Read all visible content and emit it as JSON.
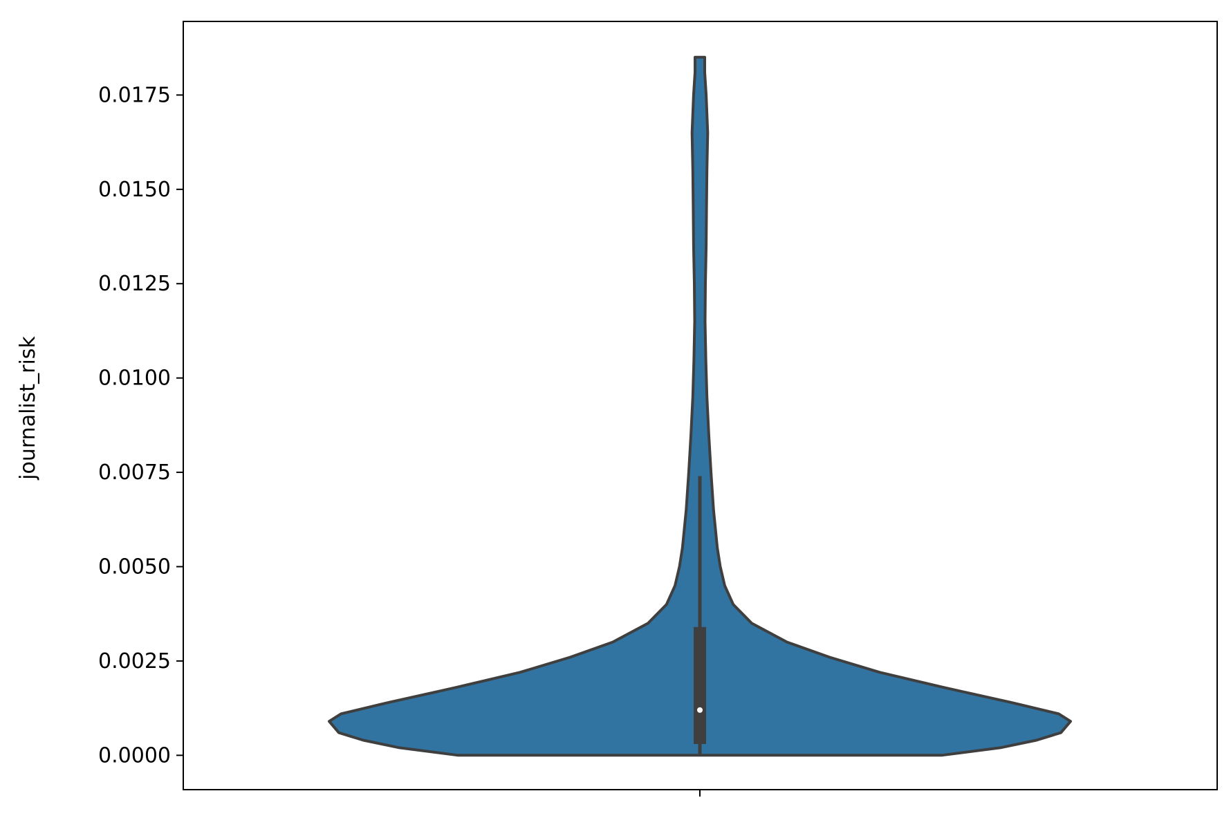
{
  "chart_data": {
    "type": "violin",
    "title": "",
    "xlabel": "",
    "ylabel": "journalist_risk",
    "ylim": [
      -0.00091,
      0.01945
    ],
    "yticks": [
      "0.0000",
      "0.0025",
      "0.0050",
      "0.0075",
      "0.0100",
      "0.0125",
      "0.0150",
      "0.0175"
    ],
    "ytick_values": [
      0,
      0.0025,
      0.005,
      0.0075,
      0.01,
      0.0125,
      0.015,
      0.0175
    ],
    "grid": false,
    "legend": "none",
    "colors": {
      "violin_fill": "#3274a1",
      "violin_edge": "#3f3f3f",
      "box": "#3f3f3f",
      "median": "#ffffff",
      "axis": "#000000"
    },
    "violin": {
      "density_profile": [
        {
          "y": 0.0,
          "w": 0.652
        },
        {
          "y": 0.0002,
          "w": 0.81
        },
        {
          "y": 0.0004,
          "w": 0.908
        },
        {
          "y": 0.0006,
          "w": 0.974
        },
        {
          "y": 0.0009,
          "w": 1.0
        },
        {
          "y": 0.0011,
          "w": 0.968
        },
        {
          "y": 0.0014,
          "w": 0.84
        },
        {
          "y": 0.0018,
          "w": 0.657
        },
        {
          "y": 0.0022,
          "w": 0.485
        },
        {
          "y": 0.0026,
          "w": 0.35
        },
        {
          "y": 0.003,
          "w": 0.235
        },
        {
          "y": 0.0035,
          "w": 0.14
        },
        {
          "y": 0.004,
          "w": 0.09
        },
        {
          "y": 0.0045,
          "w": 0.067
        },
        {
          "y": 0.005,
          "w": 0.055
        },
        {
          "y": 0.0055,
          "w": 0.047
        },
        {
          "y": 0.0065,
          "w": 0.037
        },
        {
          "y": 0.0075,
          "w": 0.03
        },
        {
          "y": 0.0085,
          "w": 0.024
        },
        {
          "y": 0.0095,
          "w": 0.019
        },
        {
          "y": 0.0105,
          "w": 0.016
        },
        {
          "y": 0.0115,
          "w": 0.014
        },
        {
          "y": 0.0125,
          "w": 0.015
        },
        {
          "y": 0.0135,
          "w": 0.017
        },
        {
          "y": 0.0145,
          "w": 0.018
        },
        {
          "y": 0.0155,
          "w": 0.019
        },
        {
          "y": 0.0165,
          "w": 0.021
        },
        {
          "y": 0.0175,
          "w": 0.017
        },
        {
          "y": 0.0181,
          "w": 0.013
        },
        {
          "y": 0.0185,
          "w": 0.013
        }
      ],
      "box": {
        "q1": 0.0003,
        "median": 0.0012,
        "q3": 0.0034,
        "whisker_low": 0.0,
        "whisker_high": 0.0074
      }
    }
  }
}
